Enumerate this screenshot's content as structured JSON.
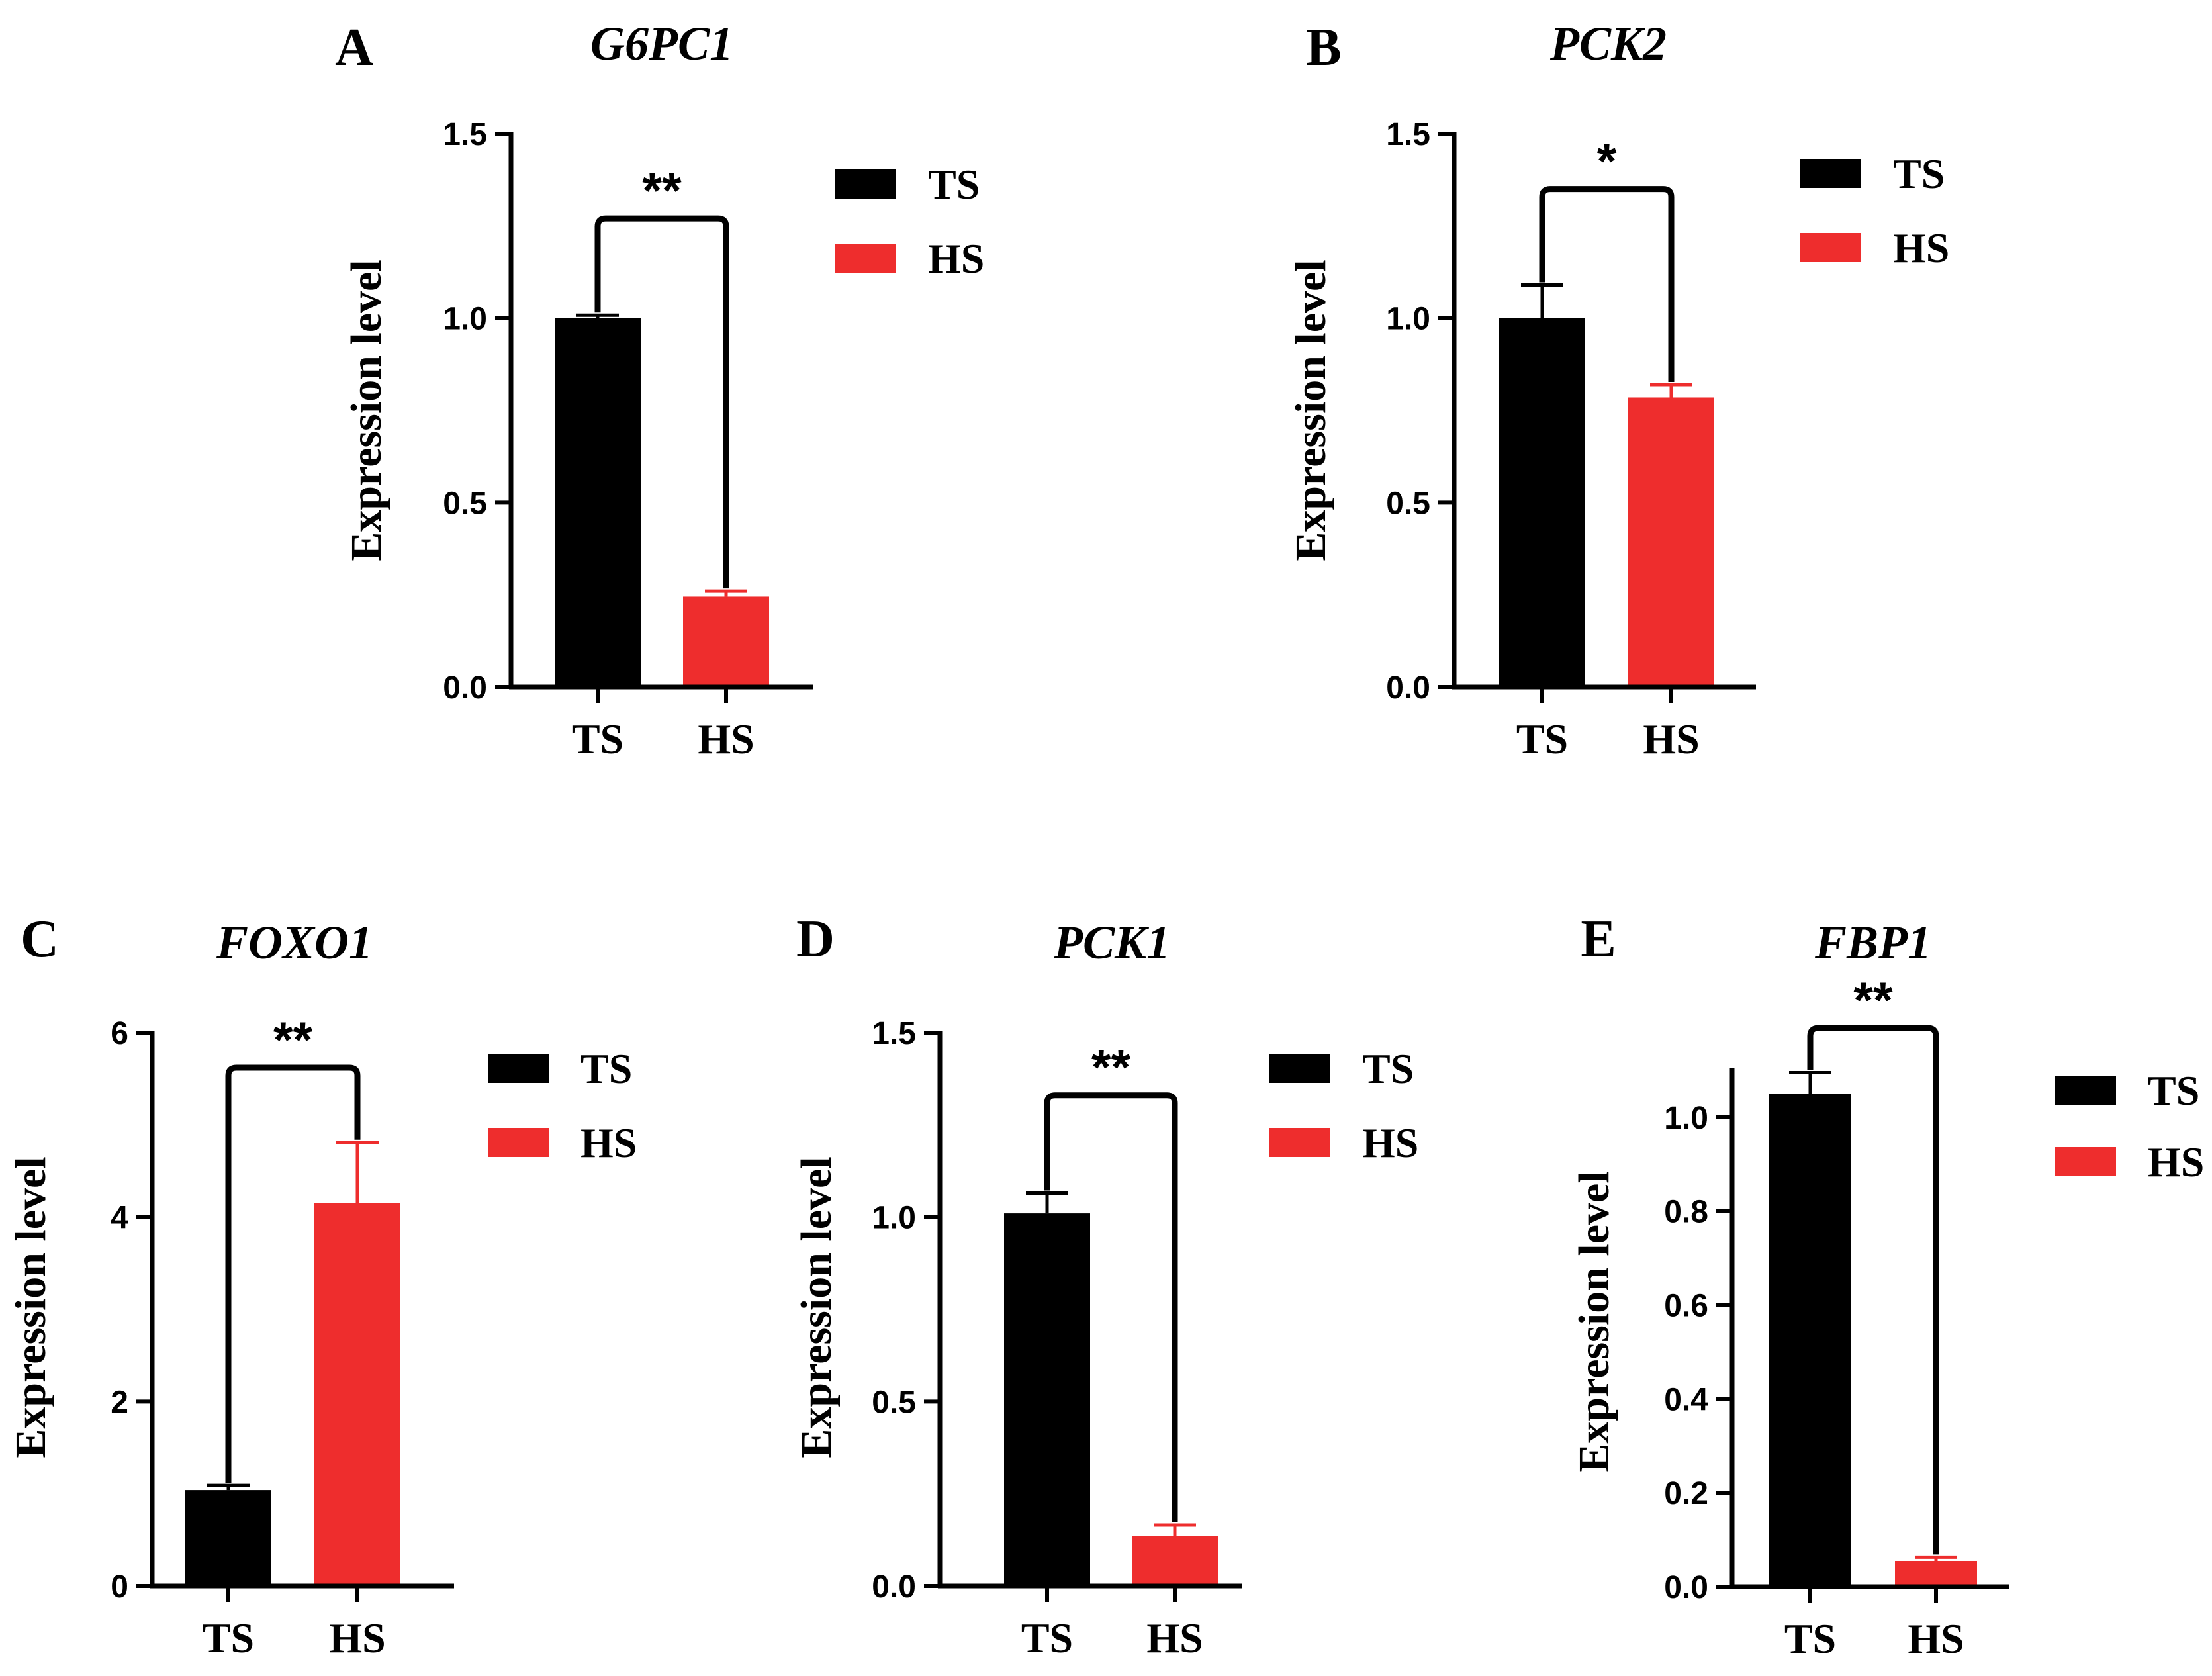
{
  "chart_data": [
    {
      "panel": "A",
      "type": "bar",
      "title": "G6PC1",
      "ylabel": "Expression level",
      "xlabel": "",
      "categories": [
        "TS",
        "HS"
      ],
      "values": [
        1.0,
        0.245
      ],
      "errors": [
        0.008,
        0.015
      ],
      "colors": [
        "#000000",
        "#ee2d2d"
      ],
      "ylim": [
        0,
        1.5
      ],
      "yticks": [
        0.0,
        0.5,
        1.0,
        1.5
      ],
      "ytick_labels": [
        "0.0",
        "0.5",
        "1.0",
        "1.5"
      ],
      "grid": false,
      "legend": {
        "position": "top-right",
        "entries": [
          "TS",
          "HS"
        ]
      },
      "significance": {
        "label": "**",
        "bracket_value": 1.27
      }
    },
    {
      "panel": "B",
      "type": "bar",
      "title": "PCK2",
      "ylabel": "Expression level",
      "xlabel": "",
      "categories": [
        "TS",
        "HS"
      ],
      "values": [
        1.0,
        0.785
      ],
      "errors": [
        0.09,
        0.035
      ],
      "colors": [
        "#000000",
        "#ee2d2d"
      ],
      "ylim": [
        0,
        1.5
      ],
      "yticks": [
        0.0,
        0.5,
        1.0,
        1.5
      ],
      "ytick_labels": [
        "0.0",
        "0.5",
        "1.0",
        "1.5"
      ],
      "grid": false,
      "legend": {
        "position": "top-right",
        "entries": [
          "TS",
          "HS"
        ]
      },
      "significance": {
        "label": "*",
        "bracket_value": 1.35
      }
    },
    {
      "panel": "C",
      "type": "bar",
      "title": "FOXO1",
      "ylabel": "Expression level",
      "xlabel": "",
      "categories": [
        "TS",
        "HS"
      ],
      "values": [
        1.04,
        4.15
      ],
      "errors": [
        0.05,
        0.66
      ],
      "colors": [
        "#000000",
        "#ee2d2d"
      ],
      "ylim": [
        0,
        6
      ],
      "yticks": [
        0,
        2,
        4,
        6
      ],
      "ytick_labels": [
        "0",
        "2",
        "4",
        "6"
      ],
      "grid": false,
      "legend": {
        "position": "top-right",
        "entries": [
          "TS",
          "HS"
        ]
      },
      "significance": {
        "label": "**",
        "bracket_value": 5.62
      }
    },
    {
      "panel": "D",
      "type": "bar",
      "title": "PCK1",
      "ylabel": "Expression level",
      "xlabel": "",
      "categories": [
        "TS",
        "HS"
      ],
      "values": [
        1.01,
        0.135
      ],
      "errors": [
        0.055,
        0.03
      ],
      "colors": [
        "#000000",
        "#ee2d2d"
      ],
      "ylim": [
        0,
        1.5
      ],
      "yticks": [
        0.0,
        0.5,
        1.0,
        1.5
      ],
      "ytick_labels": [
        "0.0",
        "0.5",
        "1.0",
        "1.5"
      ],
      "grid": false,
      "legend": {
        "position": "top-right",
        "entries": [
          "TS",
          "HS"
        ]
      },
      "significance": {
        "label": "**",
        "bracket_value": 1.33
      }
    },
    {
      "panel": "E",
      "type": "bar",
      "title": "FBP1",
      "ylabel": "Expression level",
      "xlabel": "",
      "categories": [
        "TS",
        "HS"
      ],
      "values": [
        1.05,
        0.055
      ],
      "errors": [
        0.045,
        0.008
      ],
      "colors": [
        "#000000",
        "#ee2d2d"
      ],
      "ylim": [
        0,
        1.1
      ],
      "yticks": [
        0.0,
        0.2,
        0.4,
        0.6,
        0.8,
        1.0
      ],
      "ytick_labels": [
        "0.0",
        "0.2",
        "0.4",
        "0.6",
        "0.8",
        "1.0"
      ],
      "grid": false,
      "legend": {
        "position": "top-right",
        "entries": [
          "TS",
          "HS"
        ]
      },
      "significance": {
        "label": "**",
        "bracket_value": 1.19
      }
    }
  ]
}
